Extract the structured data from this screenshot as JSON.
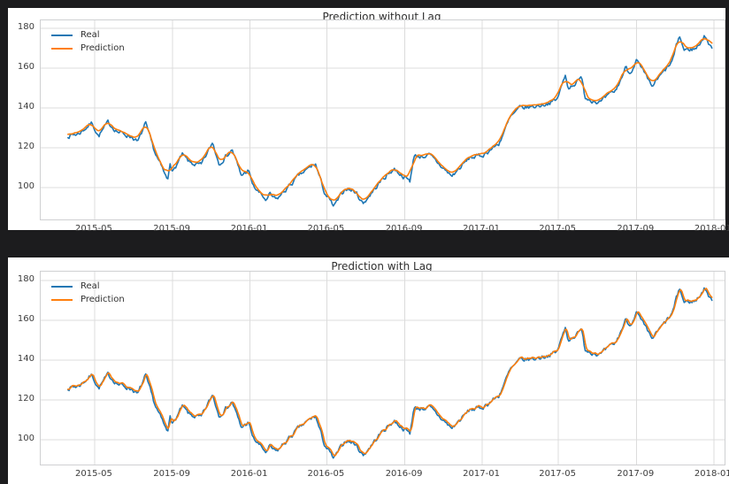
{
  "figure": {
    "outer_background": "#1c1c1e",
    "panel_background": "#ffffff",
    "grid_color": "#dcdcdc",
    "spine_color": "#cfd0d2",
    "tick_label_color": "#3c3c3c",
    "title_color": "#2e2e2e"
  },
  "chart_data": [
    {
      "type": "line",
      "title": "Prediction without Lag",
      "xlabel": "",
      "ylabel": "",
      "grid": true,
      "legend_position": "upper-left",
      "legend": [
        {
          "label": "Real",
          "color": "#1f77b4"
        },
        {
          "label": "Prediction",
          "color": "#ff7f0e"
        }
      ],
      "x_range": [
        "2015-02-05",
        "2018-01-18"
      ],
      "ylim": [
        84,
        184
      ],
      "x_ticks": [
        "2015-05",
        "2015-09",
        "2016-01",
        "2016-05",
        "2016-09",
        "2017-01",
        "2017-05",
        "2017-09",
        "2018-01"
      ],
      "y_ticks": [
        100,
        120,
        140,
        160,
        180
      ],
      "noise": {
        "seed": 7,
        "amplitude": 1.0,
        "persistence": 0.55,
        "step_days": 1.75
      },
      "series": [
        {
          "name": "Real",
          "color": "#1f77b4",
          "anchors": [
            [
              "2015-03-20",
              126.0
            ],
            [
              "2015-04-06",
              127.1
            ],
            [
              "2015-04-27",
              132.6
            ],
            [
              "2015-05-07",
              125.8
            ],
            [
              "2015-05-22",
              132.5
            ],
            [
              "2015-06-08",
              127.8
            ],
            [
              "2015-06-30",
              125.4
            ],
            [
              "2015-07-08",
              122.6
            ],
            [
              "2015-07-20",
              132.1
            ],
            [
              "2015-08-03",
              118.4
            ],
            [
              "2015-08-24",
              103.3
            ],
            [
              "2015-08-28",
              113.3
            ],
            [
              "2015-09-01",
              107.7
            ],
            [
              "2015-09-16",
              116.4
            ],
            [
              "2015-09-28",
              112.4
            ],
            [
              "2015-10-16",
              111.0
            ],
            [
              "2015-11-03",
              122.6
            ],
            [
              "2015-11-13",
              112.3
            ],
            [
              "2015-12-04",
              119.0
            ],
            [
              "2015-12-18",
              106.0
            ],
            [
              "2015-12-29",
              108.7
            ],
            [
              "2016-01-06",
              100.7
            ],
            [
              "2016-01-27",
              93.4
            ],
            [
              "2016-02-01",
              96.4
            ],
            [
              "2016-02-11",
              93.7
            ],
            [
              "2016-03-18",
              105.9
            ],
            [
              "2016-04-13",
              112.0
            ],
            [
              "2016-04-27",
              97.8
            ],
            [
              "2016-05-12",
              90.3
            ],
            [
              "2016-05-31",
              99.9
            ],
            [
              "2016-06-16",
              97.6
            ],
            [
              "2016-06-27",
              92.0
            ],
            [
              "2016-07-28",
              104.3
            ],
            [
              "2016-08-15",
              109.5
            ],
            [
              "2016-09-09",
              103.1
            ],
            [
              "2016-09-15",
              115.6
            ],
            [
              "2016-10-10",
              116.1
            ],
            [
              "2016-11-14",
              105.7
            ],
            [
              "2016-12-13",
              115.2
            ],
            [
              "2016-12-30",
              115.8
            ],
            [
              "2017-01-27",
              122.0
            ],
            [
              "2017-02-14",
              135.0
            ],
            [
              "2017-03-01",
              139.8
            ],
            [
              "2017-03-27",
              140.9
            ],
            [
              "2017-04-28",
              143.7
            ],
            [
              "2017-05-12",
              156.1
            ],
            [
              "2017-05-17",
              150.3
            ],
            [
              "2017-06-08",
              155.0
            ],
            [
              "2017-06-12",
              145.4
            ],
            [
              "2017-07-06",
              142.7
            ],
            [
              "2017-07-31",
              148.9
            ],
            [
              "2017-08-16",
              160.9
            ],
            [
              "2017-08-21",
              157.2
            ],
            [
              "2017-09-01",
              164.0
            ],
            [
              "2017-09-25",
              150.6
            ],
            [
              "2017-10-27",
              163.0
            ],
            [
              "2017-11-08",
              176.2
            ],
            [
              "2017-11-15",
              169.1
            ],
            [
              "2017-12-04",
              169.8
            ],
            [
              "2017-12-18",
              176.4
            ],
            [
              "2017-12-29",
              169.2
            ]
          ]
        },
        {
          "name": "Prediction",
          "color": "#ff7f0e",
          "derived_from": "Real",
          "method": "moving-average",
          "window": 9,
          "lag_samples": 0,
          "offset": 0.8
        }
      ]
    },
    {
      "type": "line",
      "title": "Prediction with Lag",
      "xlabel": "",
      "ylabel": "",
      "grid": true,
      "legend_position": "upper-left",
      "legend": [
        {
          "label": "Real",
          "color": "#1f77b4"
        },
        {
          "label": "Prediction",
          "color": "#ff7f0e"
        }
      ],
      "x_range": [
        "2015-02-05",
        "2018-01-18"
      ],
      "ylim": [
        87.5,
        184.5
      ],
      "x_ticks": [
        "2015-05",
        "2015-09",
        "2016-01",
        "2016-05",
        "2016-09",
        "2017-01",
        "2017-05",
        "2017-09",
        "2018-01"
      ],
      "y_ticks": [
        100,
        120,
        140,
        160,
        180
      ],
      "noise": {
        "seed": 7,
        "amplitude": 1.0,
        "persistence": 0.55,
        "step_days": 1.75
      },
      "series": [
        {
          "name": "Real",
          "color": "#1f77b4",
          "anchors": [
            [
              "2015-03-20",
              126.0
            ],
            [
              "2015-04-06",
              127.1
            ],
            [
              "2015-04-27",
              132.6
            ],
            [
              "2015-05-07",
              125.8
            ],
            [
              "2015-05-22",
              132.5
            ],
            [
              "2015-06-08",
              127.8
            ],
            [
              "2015-06-30",
              125.4
            ],
            [
              "2015-07-08",
              122.6
            ],
            [
              "2015-07-20",
              132.1
            ],
            [
              "2015-08-03",
              118.4
            ],
            [
              "2015-08-24",
              103.3
            ],
            [
              "2015-08-28",
              113.3
            ],
            [
              "2015-09-01",
              107.7
            ],
            [
              "2015-09-16",
              116.4
            ],
            [
              "2015-09-28",
              112.4
            ],
            [
              "2015-10-16",
              111.0
            ],
            [
              "2015-11-03",
              122.6
            ],
            [
              "2015-11-13",
              112.3
            ],
            [
              "2015-12-04",
              119.0
            ],
            [
              "2015-12-18",
              106.0
            ],
            [
              "2015-12-29",
              108.7
            ],
            [
              "2016-01-06",
              100.7
            ],
            [
              "2016-01-27",
              93.4
            ],
            [
              "2016-02-01",
              96.4
            ],
            [
              "2016-02-11",
              93.7
            ],
            [
              "2016-03-18",
              105.9
            ],
            [
              "2016-04-13",
              112.0
            ],
            [
              "2016-04-27",
              97.8
            ],
            [
              "2016-05-12",
              90.3
            ],
            [
              "2016-05-31",
              99.9
            ],
            [
              "2016-06-16",
              97.6
            ],
            [
              "2016-06-27",
              92.0
            ],
            [
              "2016-07-28",
              104.3
            ],
            [
              "2016-08-15",
              109.5
            ],
            [
              "2016-09-09",
              103.1
            ],
            [
              "2016-09-15",
              115.6
            ],
            [
              "2016-10-10",
              116.1
            ],
            [
              "2016-11-14",
              105.7
            ],
            [
              "2016-12-13",
              115.2
            ],
            [
              "2016-12-30",
              115.8
            ],
            [
              "2017-01-27",
              122.0
            ],
            [
              "2017-02-14",
              135.0
            ],
            [
              "2017-03-01",
              139.8
            ],
            [
              "2017-03-27",
              140.9
            ],
            [
              "2017-04-28",
              143.7
            ],
            [
              "2017-05-12",
              156.1
            ],
            [
              "2017-05-17",
              150.3
            ],
            [
              "2017-06-08",
              155.0
            ],
            [
              "2017-06-12",
              145.4
            ],
            [
              "2017-07-06",
              142.7
            ],
            [
              "2017-07-31",
              148.9
            ],
            [
              "2017-08-16",
              160.9
            ],
            [
              "2017-08-21",
              157.2
            ],
            [
              "2017-09-01",
              164.0
            ],
            [
              "2017-09-25",
              150.6
            ],
            [
              "2017-10-27",
              163.0
            ],
            [
              "2017-11-08",
              176.2
            ],
            [
              "2017-11-15",
              169.1
            ],
            [
              "2017-12-04",
              169.8
            ],
            [
              "2017-12-18",
              176.4
            ],
            [
              "2017-12-29",
              169.2
            ]
          ]
        },
        {
          "name": "Prediction",
          "color": "#ff7f0e",
          "derived_from": "Real",
          "method": "moving-average",
          "window": 3,
          "lag_samples": 1,
          "offset": 0.5
        }
      ]
    }
  ]
}
